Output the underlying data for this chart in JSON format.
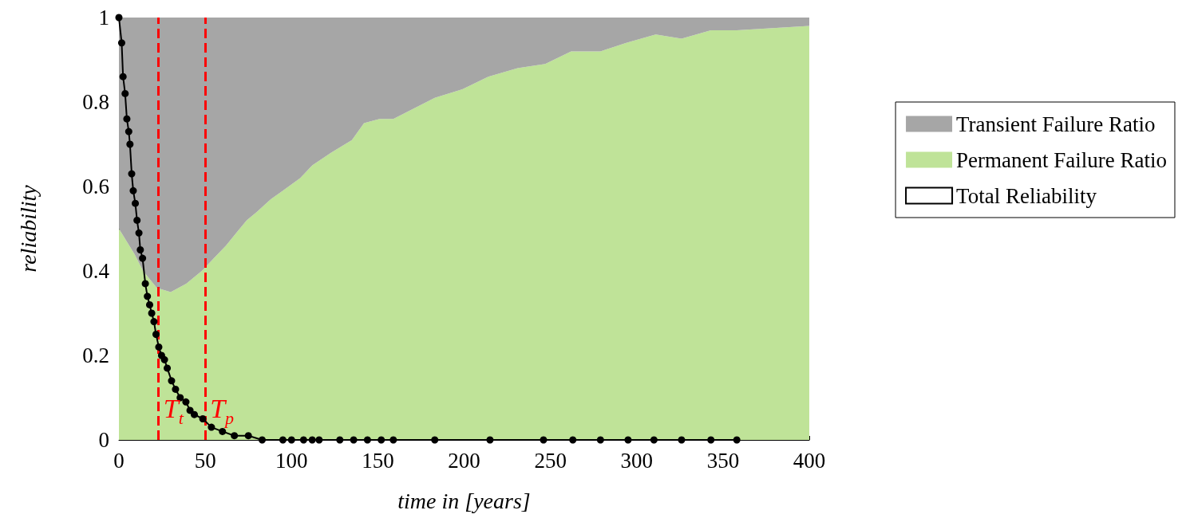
{
  "chart_data": {
    "type": "area",
    "stacked": true,
    "xlabel": "time in [years]",
    "ylabel": "reliability",
    "x": [
      0,
      9,
      14,
      22,
      30,
      39,
      48,
      55,
      62,
      68,
      74,
      80,
      88,
      95,
      105,
      112,
      123,
      135,
      142,
      151,
      159,
      183,
      199,
      214,
      231,
      247,
      262,
      279,
      294,
      311,
      326,
      343,
      358,
      400
    ],
    "series": [
      {
        "name": "Permanent Failure Ratio",
        "color": "#bfe398",
        "values": [
          0.5,
          0.44,
          0.4,
          0.36,
          0.35,
          0.37,
          0.4,
          0.43,
          0.46,
          0.49,
          0.52,
          0.54,
          0.57,
          0.59,
          0.62,
          0.65,
          0.68,
          0.71,
          0.75,
          0.76,
          0.76,
          0.81,
          0.83,
          0.86,
          0.88,
          0.89,
          0.92,
          0.92,
          0.94,
          0.96,
          0.95,
          0.97,
          0.97,
          0.98
        ]
      },
      {
        "name": "Transient Failure Ratio",
        "color": "#a6a6a6",
        "values": [
          0.5,
          0.56,
          0.6,
          0.64,
          0.65,
          0.63,
          0.6,
          0.57,
          0.54,
          0.51,
          0.48,
          0.46,
          0.43,
          0.41,
          0.38,
          0.35,
          0.32,
          0.29,
          0.25,
          0.24,
          0.24,
          0.19,
          0.17,
          0.14,
          0.12,
          0.11,
          0.08,
          0.08,
          0.06,
          0.04,
          0.05,
          0.03,
          0.03,
          0.02
        ]
      },
      {
        "name": "Total Reliability",
        "type": "line",
        "color": "#000000",
        "marker": "circle",
        "line_style": "solid",
        "x": [
          0,
          1.6,
          2.4,
          3.6,
          4.6,
          5.7,
          6.4,
          7.4,
          8.3,
          9.5,
          10.5,
          11.6,
          12.4,
          13.7,
          15.3,
          16.5,
          17.8,
          19,
          20.3,
          21.5,
          23.1,
          24.7,
          26.4,
          28,
          30.5,
          32.8,
          35.5,
          38.8,
          41.2,
          43.7,
          48.6,
          53.6,
          60,
          66.9,
          75,
          83,
          95,
          100,
          107,
          112,
          116,
          128,
          136,
          144,
          152,
          159,
          183,
          215,
          246,
          263,
          279,
          295,
          310,
          326,
          343,
          358
        ],
        "values": [
          1.0,
          0.94,
          0.86,
          0.82,
          0.76,
          0.73,
          0.7,
          0.63,
          0.59,
          0.56,
          0.52,
          0.49,
          0.45,
          0.43,
          0.37,
          0.34,
          0.32,
          0.3,
          0.28,
          0.25,
          0.22,
          0.2,
          0.19,
          0.17,
          0.14,
          0.12,
          0.1,
          0.09,
          0.07,
          0.06,
          0.05,
          0.03,
          0.02,
          0.01,
          0.01,
          0,
          0,
          0,
          0,
          0,
          0,
          0,
          0,
          0,
          0,
          0,
          0,
          0,
          0,
          0,
          0,
          0,
          0,
          0,
          0,
          0
        ]
      }
    ],
    "xlim": [
      0,
      400
    ],
    "xticks": [
      0,
      50,
      100,
      150,
      200,
      250,
      300,
      350,
      400
    ],
    "ylim": [
      0,
      1
    ],
    "yticks": [
      0,
      0.2,
      0.4,
      0.6,
      0.8,
      1
    ],
    "grid": false,
    "legend": "right",
    "ref_lines": [
      {
        "axis": "x",
        "value": 23,
        "label": "T$_{t}$",
        "color": "#ff0000",
        "line_style": "dashed"
      },
      {
        "axis": "x",
        "value": 50,
        "label": "T$_{p}$",
        "color": "#ff0000",
        "line_style": "dashed"
      }
    ]
  }
}
